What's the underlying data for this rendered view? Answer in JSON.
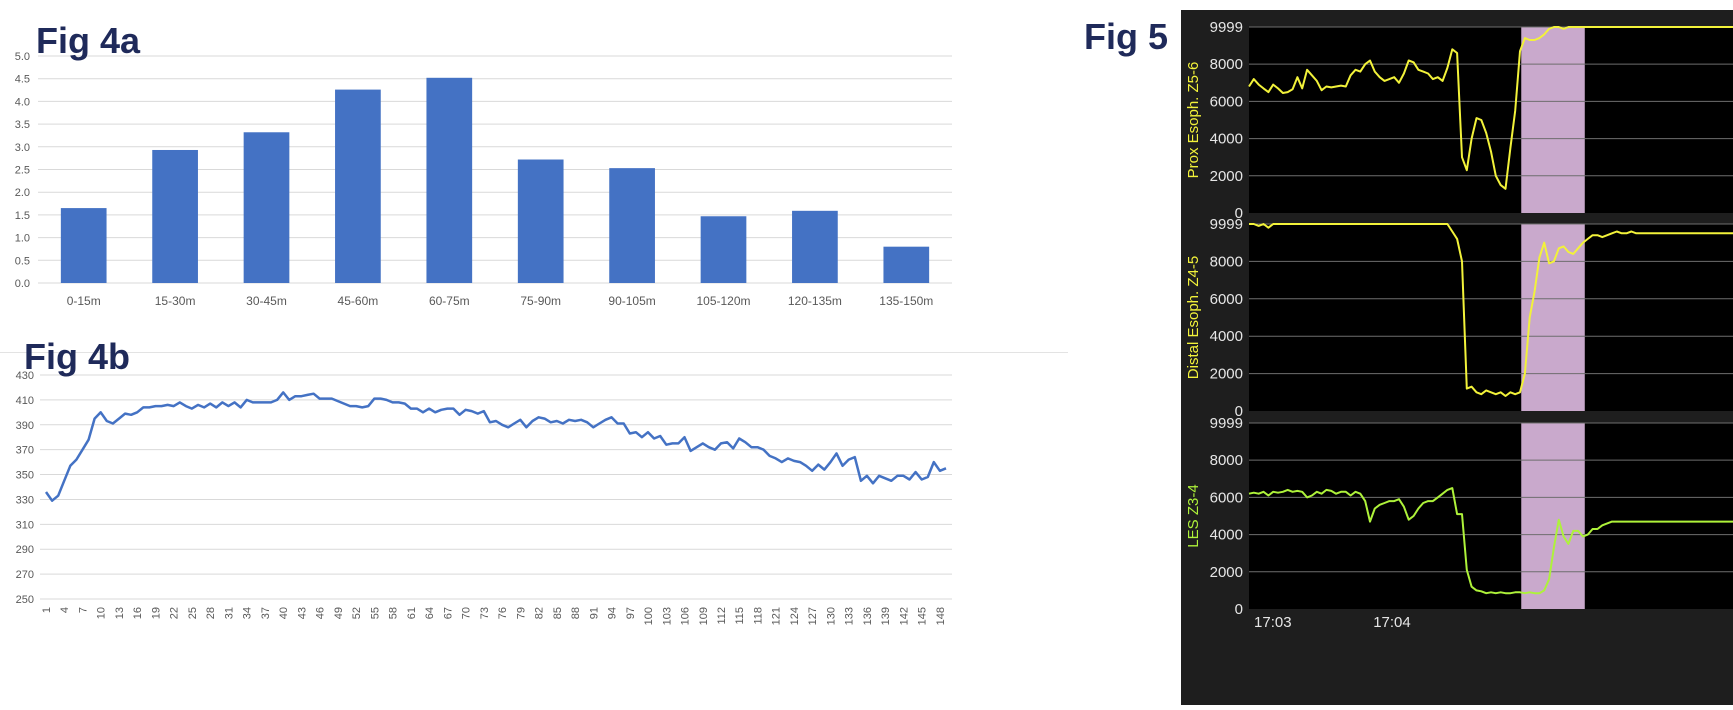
{
  "fig4a": {
    "label": "Fig 4a",
    "chart_data": {
      "type": "bar",
      "categories": [
        "0-15m",
        "15-30m",
        "30-45m",
        "45-60m",
        "60-75m",
        "75-90m",
        "90-105m",
        "105-120m",
        "120-135m",
        "135-150m"
      ],
      "values": [
        1.65,
        2.93,
        3.32,
        4.26,
        4.52,
        2.72,
        2.53,
        1.47,
        1.59,
        0.8
      ],
      "yticks": [
        "0.0",
        "0.5",
        "1.0",
        "1.5",
        "2.0",
        "2.5",
        "3.0",
        "3.5",
        "4.0",
        "4.5",
        "5.0"
      ],
      "ylim": [
        0,
        5
      ],
      "grid": true,
      "color": "#4472C4"
    }
  },
  "fig4b": {
    "label": "Fig 4b",
    "chart_data": {
      "type": "line",
      "x": [
        1,
        2,
        3,
        4,
        5,
        6,
        7,
        8,
        9,
        10,
        11,
        12,
        13,
        14,
        15,
        16,
        17,
        18,
        19,
        20,
        21,
        22,
        23,
        24,
        25,
        26,
        27,
        28,
        29,
        30,
        31,
        32,
        33,
        34,
        35,
        36,
        37,
        38,
        39,
        40,
        41,
        42,
        43,
        44,
        45,
        46,
        47,
        48,
        49,
        50,
        51,
        52,
        53,
        54,
        55,
        56,
        57,
        58,
        59,
        60,
        61,
        62,
        63,
        64,
        65,
        66,
        67,
        68,
        69,
        70,
        71,
        72,
        73,
        74,
        75,
        76,
        77,
        78,
        79,
        80,
        81,
        82,
        83,
        84,
        85,
        86,
        87,
        88,
        89,
        90,
        91,
        92,
        93,
        94,
        95,
        96,
        97,
        98,
        99,
        100,
        101,
        102,
        103,
        104,
        105,
        106,
        107,
        108,
        109,
        110,
        111,
        112,
        113,
        114,
        115,
        116,
        117,
        118,
        119,
        120,
        121,
        122,
        123,
        124,
        125,
        126,
        127,
        128,
        129,
        130,
        131,
        132,
        133,
        134,
        135,
        136,
        137,
        138,
        139,
        140,
        141,
        142,
        143,
        144,
        145,
        146,
        147,
        148,
        149
      ],
      "values": [
        336,
        329,
        333,
        345,
        357,
        362,
        370,
        378,
        395,
        400,
        393,
        391,
        395,
        399,
        398,
        400,
        404,
        404,
        405,
        405,
        406,
        405,
        408,
        405,
        403,
        406,
        404,
        407,
        404,
        408,
        405,
        408,
        404,
        410,
        408,
        408,
        408,
        408,
        410,
        416,
        410,
        413,
        413,
        414,
        415,
        411,
        411,
        411,
        409,
        407,
        405,
        405,
        404,
        405,
        411,
        411,
        410,
        408,
        408,
        407,
        403,
        403,
        400,
        403,
        400,
        402,
        403,
        403,
        398,
        402,
        401,
        399,
        401,
        392,
        393,
        390,
        388,
        391,
        394,
        388,
        393,
        396,
        395,
        392,
        393,
        391,
        394,
        393,
        394,
        392,
        388,
        391,
        394,
        396,
        391,
        391,
        383,
        384,
        380,
        384,
        379,
        381,
        374,
        375,
        375,
        380,
        369,
        372,
        375,
        372,
        370,
        375,
        376,
        371,
        379,
        376,
        372,
        372,
        370,
        365,
        363,
        360,
        363,
        361,
        360,
        357,
        353,
        358,
        354,
        360,
        367,
        357,
        362,
        364,
        345,
        349,
        343,
        349,
        347,
        345,
        349,
        349,
        346,
        352,
        346,
        348,
        360,
        353,
        355
      ],
      "xticks": [
        "1",
        "4",
        "7",
        "10",
        "13",
        "16",
        "19",
        "22",
        "25",
        "28",
        "31",
        "34",
        "37",
        "40",
        "43",
        "46",
        "49",
        "52",
        "55",
        "58",
        "61",
        "64",
        "67",
        "70",
        "73",
        "76",
        "79",
        "82",
        "85",
        "88",
        "91",
        "94",
        "97",
        "100",
        "103",
        "106",
        "109",
        "112",
        "115",
        "118",
        "121",
        "124",
        "127",
        "130",
        "133",
        "136",
        "139",
        "142",
        "145",
        "148"
      ],
      "yticks": [
        "250",
        "270",
        "290",
        "310",
        "330",
        "350",
        "370",
        "390",
        "410",
        "430"
      ],
      "ylim": [
        250,
        430
      ],
      "grid": true,
      "color": "#4472C4"
    }
  },
  "fig5": {
    "label": "Fig 5",
    "chart_data": [
      {
        "type": "line",
        "ylabel": "Prox Esoph. Z5-6",
        "yticks": [
          "0",
          "2000",
          "4000",
          "6000",
          "8000",
          "9999"
        ],
        "ylim": [
          0,
          9999
        ],
        "color": "#f2f23a",
        "x": [
          0,
          0.8,
          1.6,
          2.4,
          3.2,
          4,
          4.8,
          5.6,
          6.4,
          7.2,
          8,
          8.8,
          9.6,
          10.4,
          11.2,
          12,
          12.8,
          13.6,
          14.4,
          15.2,
          16,
          16.8,
          17.6,
          18.4,
          19.2,
          20,
          20.8,
          21.6,
          22.4,
          23.2,
          24,
          24.8,
          25.6,
          26.4,
          27.2,
          28,
          28.8,
          29.6,
          30.4,
          31.2,
          32,
          32.8,
          33.6,
          34.4,
          35.2,
          36,
          36.8,
          37.6,
          38.4,
          39.2,
          40,
          40.8,
          41.6,
          42.4,
          43.2,
          44,
          44.8,
          45.6,
          46.4,
          47.2,
          48,
          48.8,
          49.6,
          50.4,
          51.2,
          52,
          52.8,
          53.6,
          54.4,
          55.2,
          56,
          56.8,
          57.6,
          58.4,
          59.2,
          60,
          60.8,
          61.6,
          62.4,
          63.2,
          64,
          64.8,
          65.6,
          66.4,
          67.2,
          68,
          68.8,
          69.6,
          70.4,
          71.2,
          72,
          72.8,
          73.6,
          74.4,
          75.2,
          76,
          76.8,
          77.6,
          78.4,
          79.2,
          80
        ],
        "values": [
          6800,
          7200,
          6900,
          6700,
          6500,
          6900,
          6700,
          6450,
          6500,
          6650,
          7300,
          6700,
          7700,
          7400,
          7100,
          6600,
          6800,
          6750,
          6800,
          6850,
          6800,
          7400,
          7700,
          7600,
          8000,
          8200,
          7600,
          7300,
          7100,
          7200,
          7300,
          7000,
          7500,
          8200,
          8100,
          7700,
          7600,
          7500,
          7200,
          7300,
          7100,
          7800,
          8800,
          8600,
          3000,
          2300,
          4000,
          5100,
          5000,
          4300,
          3300,
          2000,
          1500,
          1300,
          3500,
          5500,
          8700,
          9400,
          9300,
          9300,
          9400,
          9600,
          9900,
          9999,
          9999,
          9900,
          9999,
          9999,
          9999,
          9999,
          9999,
          9999,
          9999,
          9999,
          9999,
          9999,
          9999,
          9999,
          9999,
          9999,
          9999,
          9999,
          9999,
          9999,
          9999,
          9999,
          9999,
          9999,
          9999,
          9999,
          9999,
          9999,
          9999,
          9999,
          9999,
          9999,
          9999,
          9999,
          9999,
          9999,
          9999
        ]
      },
      {
        "type": "line",
        "ylabel": "Distal Esoph. Z4-5",
        "yticks": [
          "0",
          "2000",
          "4000",
          "6000",
          "8000",
          "9999"
        ],
        "ylim": [
          0,
          9999
        ],
        "color": "#f2f23a",
        "x": [
          0,
          0.8,
          1.6,
          2.4,
          3.2,
          4,
          4.8,
          5.6,
          6.4,
          7.2,
          8,
          8.8,
          9.6,
          10.4,
          11.2,
          12,
          12.8,
          13.6,
          14.4,
          15.2,
          16,
          16.8,
          17.6,
          18.4,
          19.2,
          20,
          20.8,
          21.6,
          22.4,
          23.2,
          24,
          24.8,
          25.6,
          26.4,
          27.2,
          28,
          28.8,
          29.6,
          30.4,
          31.2,
          32,
          32.8,
          33.6,
          34.4,
          35.2,
          36,
          36.8,
          37.6,
          38.4,
          39.2,
          40,
          40.8,
          41.6,
          42.4,
          43.2,
          44,
          44.8,
          45.6,
          46.4,
          47.2,
          48,
          48.8,
          49.6,
          50.4,
          51.2,
          52,
          52.8,
          53.6,
          54.4,
          55.2,
          56,
          56.8,
          57.6,
          58.4,
          59.2,
          60,
          60.8,
          61.6,
          62.4,
          63.2,
          64,
          64.8,
          65.6,
          66.4,
          67.2,
          68,
          68.8,
          69.6,
          70.4,
          71.2,
          72,
          72.8,
          73.6,
          74.4,
          75.2,
          76,
          76.8,
          77.6,
          78.4,
          79.2,
          80
        ],
        "values": [
          9999,
          9999,
          9900,
          9999,
          9800,
          9999,
          9999,
          9999,
          9999,
          9999,
          9999,
          9999,
          9999,
          9999,
          9999,
          9999,
          9999,
          9999,
          9999,
          9999,
          9999,
          9999,
          9999,
          9999,
          9999,
          9999,
          9999,
          9999,
          9999,
          9999,
          9999,
          9999,
          9999,
          9999,
          9999,
          9999,
          9999,
          9999,
          9999,
          9999,
          9999,
          9999,
          9600,
          9200,
          8000,
          1200,
          1300,
          1000,
          900,
          1100,
          1000,
          900,
          1000,
          800,
          1000,
          900,
          1000,
          2000,
          5000,
          6400,
          8200,
          9000,
          7900,
          8000,
          8700,
          8800,
          8500,
          8400,
          8700,
          9000,
          9200,
          9400,
          9400,
          9300,
          9400,
          9500,
          9600,
          9500,
          9500,
          9600,
          9500,
          9500,
          9500,
          9500,
          9500,
          9500,
          9500,
          9500,
          9500,
          9500,
          9500,
          9500,
          9500,
          9500,
          9500,
          9500,
          9500,
          9500,
          9500,
          9500,
          9500
        ]
      },
      {
        "type": "line",
        "ylabel": "LES Z3-4",
        "yticks": [
          "0",
          "2000",
          "4000",
          "6000",
          "8000",
          "9999"
        ],
        "ylim": [
          0,
          9999
        ],
        "color": "#aef23a",
        "x": [
          0,
          0.8,
          1.6,
          2.4,
          3.2,
          4,
          4.8,
          5.6,
          6.4,
          7.2,
          8,
          8.8,
          9.6,
          10.4,
          11.2,
          12,
          12.8,
          13.6,
          14.4,
          15.2,
          16,
          16.8,
          17.6,
          18.4,
          19.2,
          20,
          20.8,
          21.6,
          22.4,
          23.2,
          24,
          24.8,
          25.6,
          26.4,
          27.2,
          28,
          28.8,
          29.6,
          30.4,
          31.2,
          32,
          32.8,
          33.6,
          34.4,
          35.2,
          36,
          36.8,
          37.6,
          38.4,
          39.2,
          40,
          40.8,
          41.6,
          42.4,
          43.2,
          44,
          44.8,
          45.6,
          46.4,
          47.2,
          48,
          48.8,
          49.6,
          50.4,
          51.2,
          52,
          52.8,
          53.6,
          54.4,
          55.2,
          56,
          56.8,
          57.6,
          58.4,
          59.2,
          60,
          60.8,
          61.6,
          62.4,
          63.2,
          64,
          64.8,
          65.6,
          66.4,
          67.2,
          68,
          68.8,
          69.6,
          70.4,
          71.2,
          72,
          72.8,
          73.6,
          74.4,
          75.2,
          76,
          76.8,
          77.6,
          78.4,
          79.2,
          80
        ],
        "values": [
          6200,
          6250,
          6200,
          6300,
          6100,
          6300,
          6250,
          6300,
          6400,
          6300,
          6350,
          6300,
          6000,
          6100,
          6300,
          6200,
          6400,
          6350,
          6200,
          6300,
          6300,
          6100,
          6300,
          6200,
          5800,
          4700,
          5400,
          5600,
          5700,
          5800,
          5800,
          5900,
          5500,
          4800,
          5000,
          5400,
          5700,
          5800,
          5800,
          6000,
          6200,
          6400,
          6500,
          5100,
          5100,
          2100,
          1200,
          1000,
          950,
          850,
          900,
          850,
          900,
          850,
          850,
          900,
          900,
          850,
          900,
          850,
          850,
          1000,
          1600,
          3300,
          4800,
          3900,
          3500,
          4200,
          4200,
          3900,
          4000,
          4300,
          4300,
          4500,
          4600,
          4700,
          4700,
          4700,
          4700,
          4700,
          4700,
          4700,
          4700,
          4700,
          4700,
          4700,
          4700,
          4700,
          4700,
          4700,
          4700,
          4700,
          4700,
          4700,
          4700,
          4700,
          4700,
          4700,
          4700,
          4700,
          4700
        ]
      }
    ],
    "xticks": [
      "17:03",
      "17:04"
    ],
    "highlight": {
      "from": 45,
      "to": 55.5
    },
    "highlight_color": "#c9a9cc"
  }
}
